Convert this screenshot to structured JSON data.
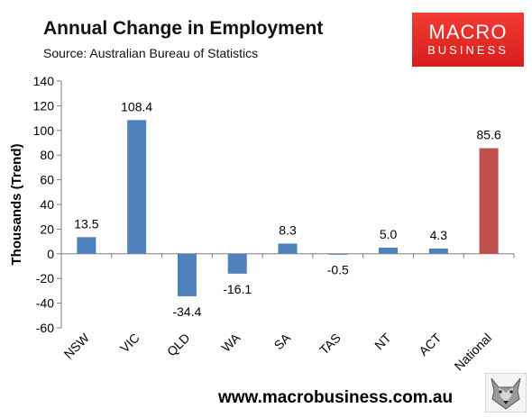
{
  "header": {
    "title": "Annual Change in Employment",
    "subtitle": "Source: Australian Bureau of Statistics"
  },
  "logo": {
    "line1": "MACRO",
    "line2": "BUSINESS",
    "color": "#e3241f"
  },
  "footer": {
    "url": "www.macrobusiness.com.au",
    "icon": "wolf-icon"
  },
  "chart_data": {
    "type": "bar",
    "title": "Annual Change in Employment",
    "subtitle": "Source: Australian Bureau of Statistics",
    "xlabel": "",
    "ylabel": "Thousands (Trend)",
    "ylim": [
      -60,
      140
    ],
    "yticks": [
      -60,
      -40,
      -20,
      0,
      20,
      40,
      60,
      80,
      100,
      120,
      140
    ],
    "categories": [
      "NSW",
      "VIC",
      "QLD",
      "WA",
      "SA",
      "TAS",
      "NT",
      "ACT",
      "National"
    ],
    "values": [
      13.5,
      108.4,
      -34.4,
      -16.1,
      8.3,
      -0.5,
      5.0,
      4.3,
      85.6
    ],
    "labels": [
      "13.5",
      "108.4",
      "-34.4",
      "-16.1",
      "8.3",
      "-0.5",
      "5.0",
      "4.3",
      "85.6"
    ],
    "colors": [
      "#4f81bd",
      "#4f81bd",
      "#4f81bd",
      "#4f81bd",
      "#4f81bd",
      "#4f81bd",
      "#4f81bd",
      "#4f81bd",
      "#c0504d"
    ],
    "grid": false,
    "legend": "none"
  }
}
